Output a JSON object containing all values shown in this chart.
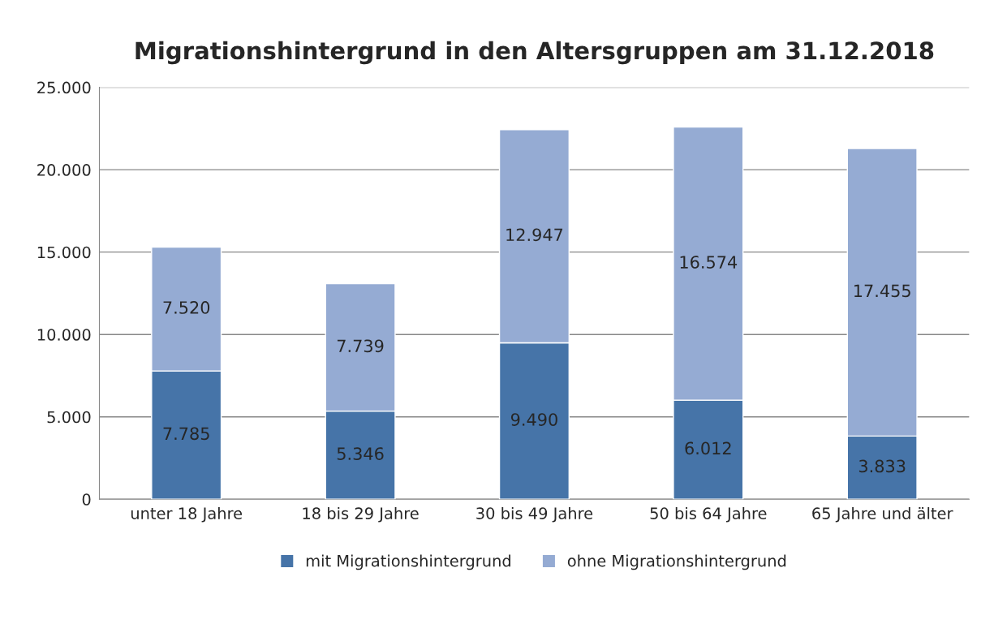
{
  "chart_data": {
    "type": "bar",
    "title": "Migrationshintergrund in den Altersgruppen am 31.12.2018",
    "stacked": true,
    "categories": [
      "unter 18 Jahre",
      "18 bis 29 Jahre",
      "30 bis 49 Jahre",
      "50 bis 64 Jahre",
      "65 Jahre und älter"
    ],
    "series": [
      {
        "name": "mit Migrationshintergrund",
        "color": "#4674a8",
        "values": [
          7785,
          5346,
          9490,
          6012,
          3833
        ],
        "value_labels": [
          "7.785",
          "5.346",
          "9.490",
          "6.012",
          "3.833"
        ]
      },
      {
        "name": "ohne Migrationshintergrund",
        "color": "#95abd3",
        "values": [
          7520,
          7739,
          12947,
          16574,
          17455
        ],
        "value_labels": [
          "7.520",
          "7.739",
          "12.947",
          "16.574",
          "17.455"
        ]
      }
    ],
    "ylim": [
      0,
      25000
    ],
    "yticks": [
      {
        "value": 0,
        "label": "0"
      },
      {
        "value": 5000,
        "label": "5.000"
      },
      {
        "value": 10000,
        "label": "10.000"
      },
      {
        "value": 15000,
        "label": "15.000"
      },
      {
        "value": 20000,
        "label": "20.000"
      },
      {
        "value": 25000,
        "label": "25.000"
      }
    ],
    "grid": "y",
    "legend": "bottom"
  }
}
